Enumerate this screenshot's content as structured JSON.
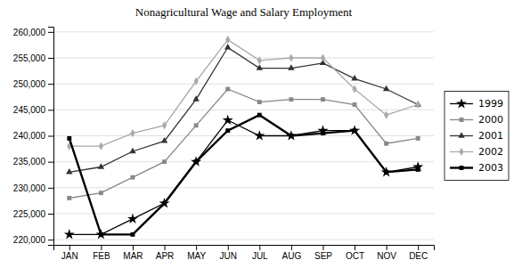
{
  "chart_data": {
    "type": "line",
    "title": "Nonagricultural Wage and Salary Employment",
    "categories": [
      "JAN",
      "FEB",
      "MAR",
      "APR",
      "MAY",
      "JUN",
      "JUL",
      "AUG",
      "SEP",
      "OCT",
      "NOV",
      "DEC"
    ],
    "series": [
      {
        "name": "1999",
        "color": "#000000",
        "marker": "star",
        "line_style": "solid",
        "values": [
          221000,
          221000,
          224000,
          227000,
          235000,
          243000,
          240000,
          240000,
          241000,
          241000,
          233000,
          234000
        ]
      },
      {
        "name": "2000",
        "color": "#888888",
        "marker": "square",
        "line_style": "solid",
        "values": [
          228000,
          229000,
          232000,
          235000,
          242000,
          249000,
          246500,
          247000,
          247000,
          246000,
          238500,
          239500
        ]
      },
      {
        "name": "2001",
        "color": "#333333",
        "marker": "triangle",
        "line_style": "solid",
        "values": [
          233000,
          234000,
          237000,
          239000,
          247000,
          257000,
          253000,
          253000,
          254000,
          251000,
          249000,
          246000
        ]
      },
      {
        "name": "2002",
        "color": "#aaaaaa",
        "marker": "diamond",
        "line_style": "solid",
        "values": [
          238000,
          238000,
          240500,
          242000,
          250500,
          258500,
          254500,
          255000,
          255000,
          249000,
          244000,
          246000
        ]
      },
      {
        "name": "2003",
        "color": "#000000",
        "marker": "square",
        "line_style": "solid",
        "values": [
          239500,
          221000,
          221000,
          227000,
          235000,
          241000,
          244000,
          240000,
          240500,
          241000,
          233000,
          233500
        ]
      }
    ],
    "ylim": [
      219000,
      261000
    ],
    "yticks": [
      {
        "value": 220000,
        "label": "220,000"
      },
      {
        "value": 225000,
        "label": "225,000"
      },
      {
        "value": 230000,
        "label": "230,000"
      },
      {
        "value": 235000,
        "label": "235,000"
      },
      {
        "value": 240000,
        "label": "240,000"
      },
      {
        "value": 245000,
        "label": "245,000"
      },
      {
        "value": 250000,
        "label": "250,000"
      },
      {
        "value": 255000,
        "label": "255,000"
      },
      {
        "value": 260000,
        "label": "260,000"
      }
    ],
    "grid": true,
    "legend": "right"
  }
}
